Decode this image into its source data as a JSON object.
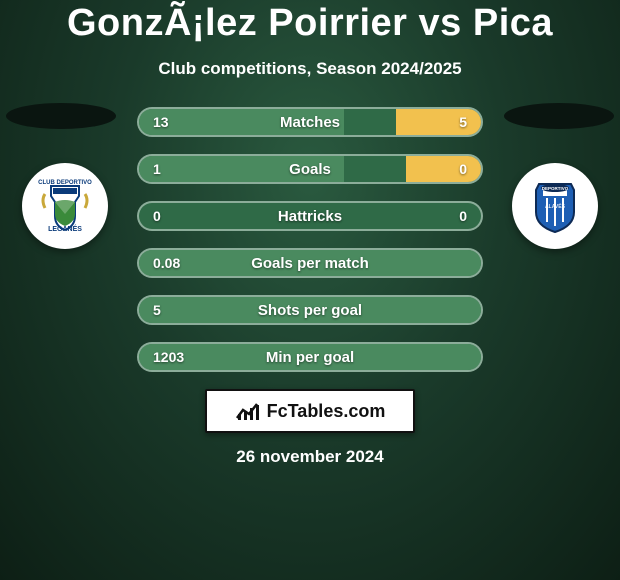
{
  "title": "GonzÃ¡lez Poirrier vs Pica",
  "subtitle": "Club competitions, Season 2024/2025",
  "date": "26 november 2024",
  "brand": "FcTables.com",
  "colors": {
    "bar_left_fill": "#4a8a5f",
    "bar_right_fill": "#f2c14e",
    "bar_bg": "#2f6a47",
    "bar_border": "rgba(255,255,255,0.45)",
    "text": "#ffffff",
    "bg_inner": "#2a5a3f",
    "bg_outer": "#0d1f15"
  },
  "logos": {
    "left_alt": "Leganés club logo",
    "right_alt": "Deportivo Alavés club logo"
  },
  "bars": [
    {
      "label": "Matches",
      "left": "13",
      "right": "5",
      "left_pct": 60,
      "right_pct": 25
    },
    {
      "label": "Goals",
      "left": "1",
      "right": "0",
      "left_pct": 60,
      "right_pct": 22
    },
    {
      "label": "Hattricks",
      "left": "0",
      "right": "0",
      "left_pct": 0,
      "right_pct": 0
    },
    {
      "label": "Goals per match",
      "left": "0.08",
      "right": "",
      "left_pct": 100,
      "right_pct": 0
    },
    {
      "label": "Shots per goal",
      "left": "5",
      "right": "",
      "left_pct": 100,
      "right_pct": 0
    },
    {
      "label": "Min per goal",
      "left": "1203",
      "right": "",
      "left_pct": 100,
      "right_pct": 0
    }
  ]
}
